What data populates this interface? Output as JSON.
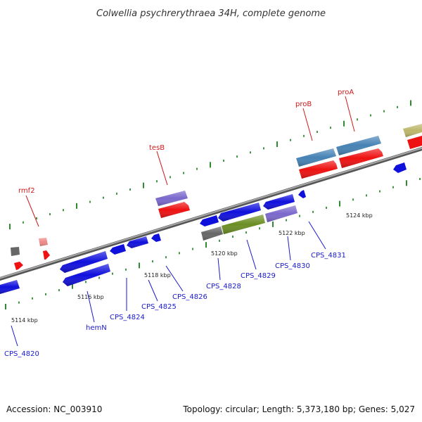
{
  "title": "Colwellia psychrerythraea 34H, complete genome",
  "footer": {
    "accession": "Accession: NC_003910",
    "summary": "Topology: circular; Length: 5,373,180 bp; Genes: 5,027"
  },
  "colors": {
    "backbone": "#7a7a7a",
    "tick": "#2e8b2e",
    "blue_gene": "#1010dd",
    "red_gene": "#ee1111",
    "purple_gene": "#7b68cc",
    "steel_gene": "#4682b4",
    "olive_gene": "#6b8e23",
    "gray_gene": "#666666",
    "pink_gene": "#ee8888",
    "khaki_gene": "#bdb76b",
    "label_blue": "#1a1acc",
    "label_red": "#cc1a1a"
  },
  "scale_labels": [
    "5114 kbp",
    "5116 kbp",
    "5118 kbp",
    "5120 kbp",
    "5122 kbp",
    "5124 kbp"
  ],
  "gene_labels": {
    "top": [
      "rmf2",
      "tesB",
      "proB",
      "proA"
    ],
    "bottom": [
      "CPS_4820",
      "hemN",
      "CPS_4824",
      "CPS_4825",
      "CPS_4826",
      "CPS_4828",
      "CPS_4829",
      "CPS_4830",
      "CPS_4831"
    ]
  }
}
